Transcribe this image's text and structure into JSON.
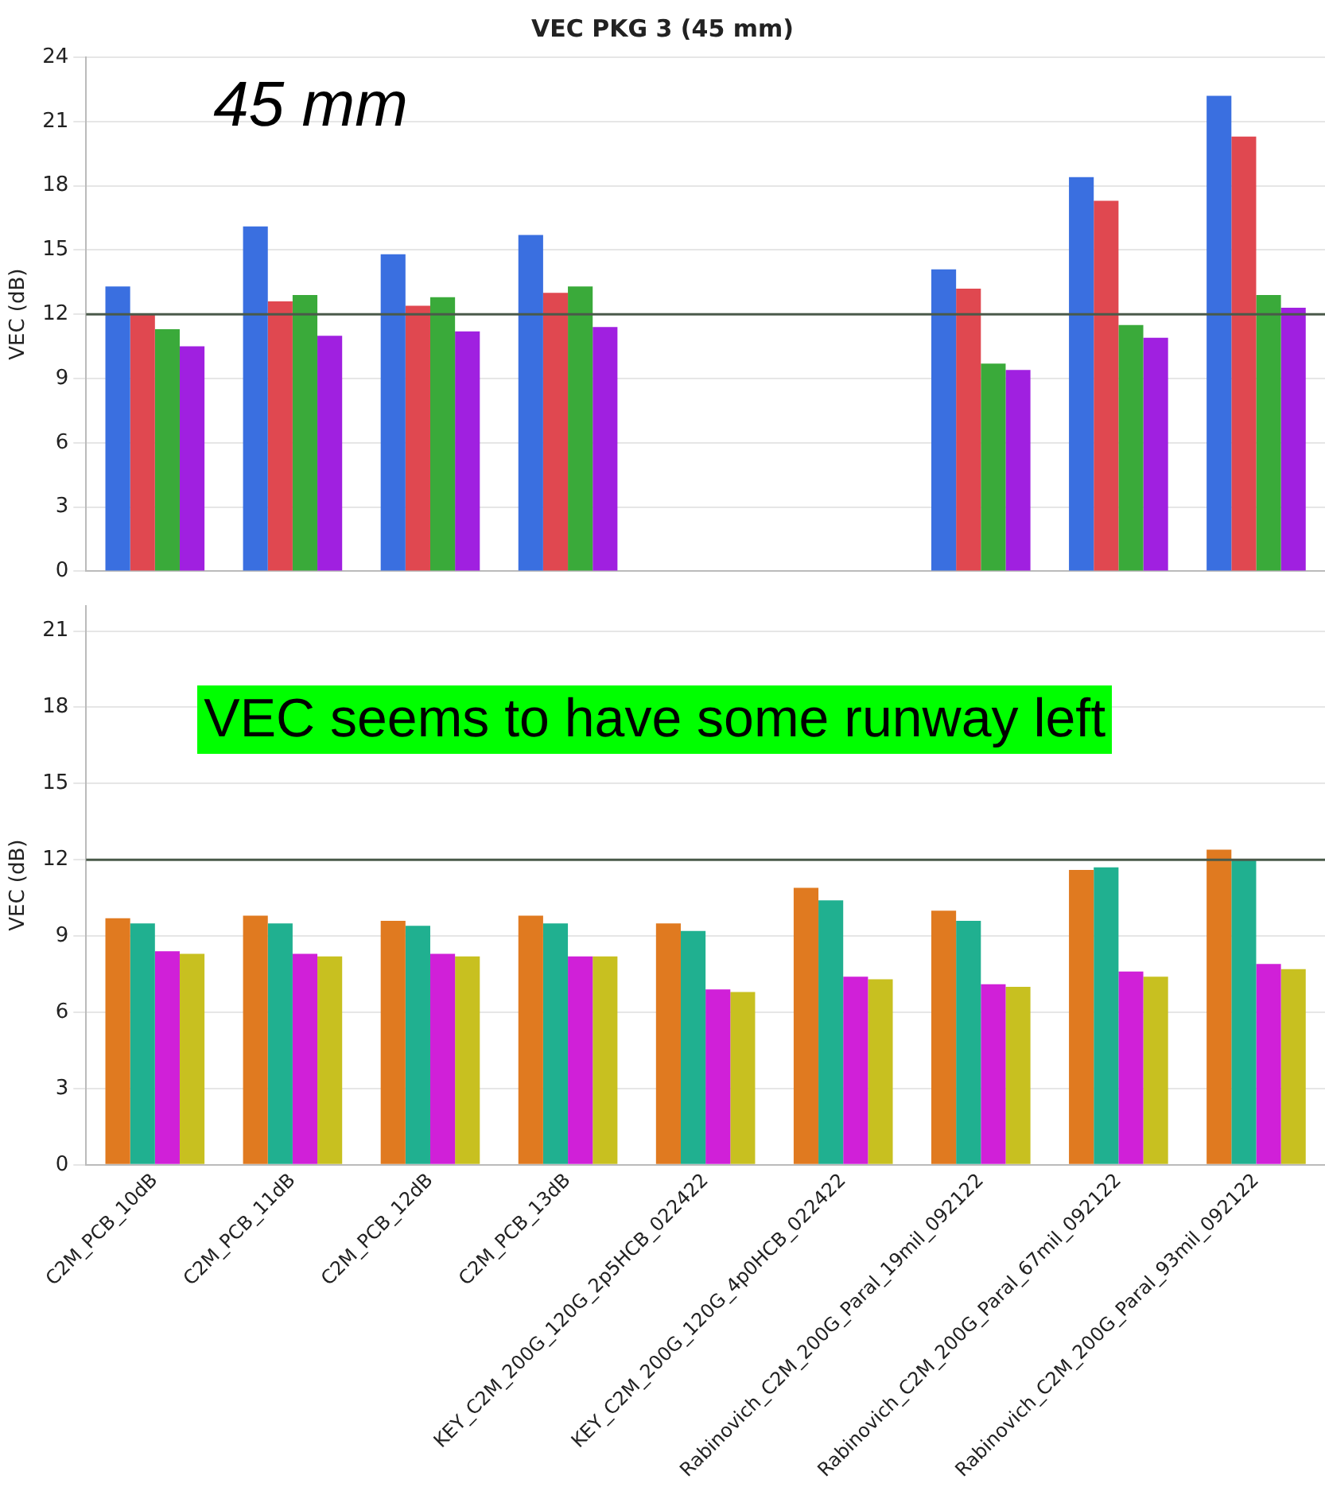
{
  "chart_data": [
    {
      "type": "bar",
      "title": "VEC PKG 3 (45 mm)",
      "ylabel": "VEC (dB)",
      "annotations": [
        "45 mm"
      ],
      "categories": [
        null,
        null,
        null,
        null,
        null,
        null,
        null,
        null,
        null
      ],
      "series": [
        {
          "color": "#3a6fe0",
          "values": [
            13.3,
            16.1,
            14.8,
            15.7,
            0,
            0,
            14.1,
            18.4,
            22.2
          ]
        },
        {
          "color": "#e04850",
          "values": [
            12.0,
            12.6,
            12.4,
            13.0,
            0,
            0,
            13.2,
            17.3,
            20.3
          ]
        },
        {
          "color": "#3aaa3a",
          "values": [
            11.3,
            12.9,
            12.8,
            13.3,
            0,
            0,
            9.7,
            11.5,
            12.9
          ]
        },
        {
          "color": "#a020e0",
          "values": [
            10.5,
            11.0,
            11.2,
            11.4,
            0,
            0,
            9.4,
            10.9,
            12.3
          ]
        }
      ],
      "ylim": [
        0,
        24
      ],
      "yticks": [
        0,
        3,
        6,
        9,
        12,
        15,
        18,
        21,
        24
      ],
      "grid": "y",
      "tick_labels": "y",
      "ref_lines": [
        {
          "axis": "y",
          "value": 12,
          "color": "#4a5a4a"
        }
      ]
    },
    {
      "type": "bar",
      "ylabel": "VEC (dB)",
      "annotations": [
        "VEC seems to have some runway left"
      ],
      "categories": [
        "C2M_PCB_10dB",
        "C2M_PCB_11dB",
        "C2M_PCB_12dB",
        "C2M_PCB_13dB",
        "KEY_C2M_200G_120G_2p5HCB_022422",
        "KEY_C2M_200G_120G_4p0HCB_022422",
        "Rabinovich_C2M_200G_Paral_19mil_092122",
        "Rabinovich_C2M_200G_Paral_67mil_092122",
        "Rabinovich_C2M_200G_Paral_93mil_092122"
      ],
      "series": [
        {
          "color": "#e07a20",
          "values": [
            9.7,
            9.8,
            9.6,
            9.8,
            9.5,
            10.9,
            10.0,
            11.6,
            12.4
          ]
        },
        {
          "color": "#20b090",
          "values": [
            9.5,
            9.5,
            9.4,
            9.5,
            9.2,
            10.4,
            9.6,
            11.7,
            12.0
          ]
        },
        {
          "color": "#d020d8",
          "values": [
            8.4,
            8.3,
            8.3,
            8.2,
            6.9,
            7.4,
            7.1,
            7.6,
            7.9
          ]
        },
        {
          "color": "#c8c020",
          "values": [
            8.3,
            8.2,
            8.2,
            8.2,
            6.8,
            7.3,
            7.0,
            7.4,
            7.7
          ]
        }
      ],
      "ylim": [
        0,
        22
      ],
      "yticks": [
        0,
        3,
        6,
        9,
        12,
        15,
        18,
        21
      ],
      "grid": "y",
      "ref_lines": [
        {
          "axis": "y",
          "value": 12,
          "color": "#4a5a4a"
        }
      ]
    }
  ]
}
